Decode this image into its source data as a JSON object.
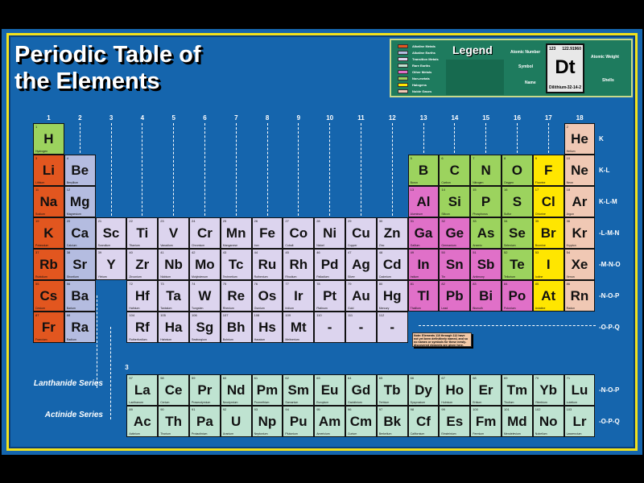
{
  "title": {
    "line1": "Periodic Table of",
    "line2": "the Elements"
  },
  "legend": {
    "title": "Legend",
    "categories": [
      {
        "key": "alkali",
        "label": "Alkaline Metals",
        "color": "#e2561f"
      },
      {
        "key": "alkaline",
        "label": "Alkaline Earths",
        "color": "#b4bce0"
      },
      {
        "key": "transition",
        "label": "Transition Metals",
        "color": "#dcd4ee"
      },
      {
        "key": "rare",
        "label": "Rare Earths",
        "color": "#bfe3d1"
      },
      {
        "key": "other",
        "label": "Other Metals",
        "color": "#e070c8"
      },
      {
        "key": "nonmetal",
        "label": "Non-metals",
        "color": "#9cd35e"
      },
      {
        "key": "halogen",
        "label": "Halogens",
        "color": "#ffe600"
      },
      {
        "key": "noble",
        "label": "Noble Gases",
        "color": "#f0c8b4"
      }
    ],
    "sample": {
      "number": "123",
      "weight": "122.91960",
      "symbol": "Dt",
      "name": "Dilithium",
      "shells": "-32-14-2"
    },
    "labels": {
      "number": "Atomic Number",
      "weight": "Atomic Weight",
      "symbol": "Symbol",
      "name": "Name",
      "shells": "Shells"
    }
  },
  "groups": [
    "1",
    "2",
    "3",
    "4",
    "5",
    "6",
    "7",
    "8",
    "9",
    "10",
    "11",
    "12",
    "13",
    "14",
    "15",
    "16",
    "17",
    "18"
  ],
  "lanthanide_group_label": "3",
  "shells": [
    "K",
    "K-L",
    "K-L-M",
    "-L-M-N",
    "-M-N-O",
    "-N-O-P",
    "-O-P-Q"
  ],
  "series_shells": [
    "-N-O-P",
    "-O-P-Q"
  ],
  "series_labels": {
    "lanthanide": "Lanthanide Series",
    "actinide": "Actinide Series"
  },
  "note": "Note: Elements 110 through 112 have not yet been definitively named, and so no names or symbols for these newly-discovered elements are given here.",
  "elements": [
    {
      "n": 1,
      "s": "H",
      "name": "Hydrogen",
      "c": "nonmetal",
      "g": 1,
      "p": 1
    },
    {
      "n": 2,
      "s": "He",
      "name": "Helium",
      "c": "noble",
      "g": 18,
      "p": 1
    },
    {
      "n": 3,
      "s": "Li",
      "name": "Lithium",
      "c": "alkali",
      "g": 1,
      "p": 2
    },
    {
      "n": 4,
      "s": "Be",
      "name": "Beryllium",
      "c": "alkaline",
      "g": 2,
      "p": 2
    },
    {
      "n": 5,
      "s": "B",
      "name": "Boron",
      "c": "nonmetal",
      "g": 13,
      "p": 2
    },
    {
      "n": 6,
      "s": "C",
      "name": "Carbon",
      "c": "nonmetal",
      "g": 14,
      "p": 2
    },
    {
      "n": 7,
      "s": "N",
      "name": "Nitrogen",
      "c": "nonmetal",
      "g": 15,
      "p": 2
    },
    {
      "n": 8,
      "s": "O",
      "name": "Oxygen",
      "c": "nonmetal",
      "g": 16,
      "p": 2
    },
    {
      "n": 9,
      "s": "F",
      "name": "Fluorine",
      "c": "halogen",
      "g": 17,
      "p": 2
    },
    {
      "n": 10,
      "s": "Ne",
      "name": "Neon",
      "c": "noble",
      "g": 18,
      "p": 2
    },
    {
      "n": 11,
      "s": "Na",
      "name": "Sodium",
      "c": "alkali",
      "g": 1,
      "p": 3
    },
    {
      "n": 12,
      "s": "Mg",
      "name": "Magnesium",
      "c": "alkaline",
      "g": 2,
      "p": 3
    },
    {
      "n": 13,
      "s": "Al",
      "name": "Aluminum",
      "c": "other",
      "g": 13,
      "p": 3
    },
    {
      "n": 14,
      "s": "Si",
      "name": "Silicon",
      "c": "nonmetal",
      "g": 14,
      "p": 3
    },
    {
      "n": 15,
      "s": "P",
      "name": "Phosphorus",
      "c": "nonmetal",
      "g": 15,
      "p": 3
    },
    {
      "n": 16,
      "s": "S",
      "name": "Sulfur",
      "c": "nonmetal",
      "g": 16,
      "p": 3
    },
    {
      "n": 17,
      "s": "Cl",
      "name": "Chlorine",
      "c": "halogen",
      "g": 17,
      "p": 3
    },
    {
      "n": 18,
      "s": "Ar",
      "name": "Argon",
      "c": "noble",
      "g": 18,
      "p": 3
    },
    {
      "n": 19,
      "s": "K",
      "name": "Potassium",
      "c": "alkali",
      "g": 1,
      "p": 4
    },
    {
      "n": 20,
      "s": "Ca",
      "name": "Calcium",
      "c": "alkaline",
      "g": 2,
      "p": 4
    },
    {
      "n": 21,
      "s": "Sc",
      "name": "Scandium",
      "c": "transition",
      "g": 3,
      "p": 4
    },
    {
      "n": 22,
      "s": "Ti",
      "name": "Titanium",
      "c": "transition",
      "g": 4,
      "p": 4
    },
    {
      "n": 23,
      "s": "V",
      "name": "Vanadium",
      "c": "transition",
      "g": 5,
      "p": 4
    },
    {
      "n": 24,
      "s": "Cr",
      "name": "Chromium",
      "c": "transition",
      "g": 6,
      "p": 4
    },
    {
      "n": 25,
      "s": "Mn",
      "name": "Manganese",
      "c": "transition",
      "g": 7,
      "p": 4
    },
    {
      "n": 26,
      "s": "Fe",
      "name": "Iron",
      "c": "transition",
      "g": 8,
      "p": 4
    },
    {
      "n": 27,
      "s": "Co",
      "name": "Cobalt",
      "c": "transition",
      "g": 9,
      "p": 4
    },
    {
      "n": 28,
      "s": "Ni",
      "name": "Nickel",
      "c": "transition",
      "g": 10,
      "p": 4
    },
    {
      "n": 29,
      "s": "Cu",
      "name": "Copper",
      "c": "transition",
      "g": 11,
      "p": 4
    },
    {
      "n": 30,
      "s": "Zn",
      "name": "Zinc",
      "c": "transition",
      "g": 12,
      "p": 4
    },
    {
      "n": 31,
      "s": "Ga",
      "name": "Gallium",
      "c": "other",
      "g": 13,
      "p": 4
    },
    {
      "n": 32,
      "s": "Ge",
      "name": "Germanium",
      "c": "other",
      "g": 14,
      "p": 4
    },
    {
      "n": 33,
      "s": "As",
      "name": "Arsenic",
      "c": "nonmetal",
      "g": 15,
      "p": 4
    },
    {
      "n": 34,
      "s": "Se",
      "name": "Selenium",
      "c": "nonmetal",
      "g": 16,
      "p": 4
    },
    {
      "n": 35,
      "s": "Br",
      "name": "Bromine",
      "c": "halogen",
      "g": 17,
      "p": 4
    },
    {
      "n": 36,
      "s": "Kr",
      "name": "Krypton",
      "c": "noble",
      "g": 18,
      "p": 4
    },
    {
      "n": 37,
      "s": "Rb",
      "name": "Rubidium",
      "c": "alkali",
      "g": 1,
      "p": 5
    },
    {
      "n": 38,
      "s": "Sr",
      "name": "Strontium",
      "c": "alkaline",
      "g": 2,
      "p": 5
    },
    {
      "n": 39,
      "s": "Y",
      "name": "Yttrium",
      "c": "transition",
      "g": 3,
      "p": 5
    },
    {
      "n": 40,
      "s": "Zr",
      "name": "Zirconium",
      "c": "transition",
      "g": 4,
      "p": 5
    },
    {
      "n": 41,
      "s": "Nb",
      "name": "Niobium",
      "c": "transition",
      "g": 5,
      "p": 5
    },
    {
      "n": 42,
      "s": "Mo",
      "name": "Molybdenum",
      "c": "transition",
      "g": 6,
      "p": 5
    },
    {
      "n": 43,
      "s": "Tc",
      "name": "Technetium",
      "c": "transition",
      "g": 7,
      "p": 5
    },
    {
      "n": 44,
      "s": "Ru",
      "name": "Ruthenium",
      "c": "transition",
      "g": 8,
      "p": 5
    },
    {
      "n": 45,
      "s": "Rh",
      "name": "Rhodium",
      "c": "transition",
      "g": 9,
      "p": 5
    },
    {
      "n": 46,
      "s": "Pd",
      "name": "Palladium",
      "c": "transition",
      "g": 10,
      "p": 5
    },
    {
      "n": 47,
      "s": "Ag",
      "name": "Silver",
      "c": "transition",
      "g": 11,
      "p": 5
    },
    {
      "n": 48,
      "s": "Cd",
      "name": "Cadmium",
      "c": "transition",
      "g": 12,
      "p": 5
    },
    {
      "n": 49,
      "s": "In",
      "name": "Indium",
      "c": "other",
      "g": 13,
      "p": 5
    },
    {
      "n": 50,
      "s": "Sn",
      "name": "Tin",
      "c": "other",
      "g": 14,
      "p": 5
    },
    {
      "n": 51,
      "s": "Sb",
      "name": "Antimony",
      "c": "other",
      "g": 15,
      "p": 5
    },
    {
      "n": 52,
      "s": "Te",
      "name": "Tellurium",
      "c": "nonmetal",
      "g": 16,
      "p": 5
    },
    {
      "n": 53,
      "s": "I",
      "name": "Iodine",
      "c": "halogen",
      "g": 17,
      "p": 5
    },
    {
      "n": 54,
      "s": "Xe",
      "name": "Xenon",
      "c": "noble",
      "g": 18,
      "p": 5
    },
    {
      "n": 55,
      "s": "Cs",
      "name": "Cesium",
      "c": "alkali",
      "g": 1,
      "p": 6
    },
    {
      "n": 56,
      "s": "Ba",
      "name": "Barium",
      "c": "alkaline",
      "g": 2,
      "p": 6
    },
    {
      "n": 72,
      "s": "Hf",
      "name": "Hafnium",
      "c": "transition",
      "g": 4,
      "p": 6
    },
    {
      "n": 73,
      "s": "Ta",
      "name": "Tantalum",
      "c": "transition",
      "g": 5,
      "p": 6
    },
    {
      "n": 74,
      "s": "W",
      "name": "Tungsten",
      "c": "transition",
      "g": 6,
      "p": 6
    },
    {
      "n": 75,
      "s": "Re",
      "name": "Rhenium",
      "c": "transition",
      "g": 7,
      "p": 6
    },
    {
      "n": 76,
      "s": "Os",
      "name": "Osmium",
      "c": "transition",
      "g": 8,
      "p": 6
    },
    {
      "n": 77,
      "s": "Ir",
      "name": "Iridium",
      "c": "transition",
      "g": 9,
      "p": 6
    },
    {
      "n": 78,
      "s": "Pt",
      "name": "Platinum",
      "c": "transition",
      "g": 10,
      "p": 6
    },
    {
      "n": 79,
      "s": "Au",
      "name": "Gold",
      "c": "transition",
      "g": 11,
      "p": 6
    },
    {
      "n": 80,
      "s": "Hg",
      "name": "Mercury",
      "c": "transition",
      "g": 12,
      "p": 6
    },
    {
      "n": 81,
      "s": "Tl",
      "name": "Thallium",
      "c": "other",
      "g": 13,
      "p": 6
    },
    {
      "n": 82,
      "s": "Pb",
      "name": "Lead",
      "c": "other",
      "g": 14,
      "p": 6
    },
    {
      "n": 83,
      "s": "Bi",
      "name": "Bismuth",
      "c": "other",
      "g": 15,
      "p": 6
    },
    {
      "n": 84,
      "s": "Po",
      "name": "Polonium",
      "c": "other",
      "g": 16,
      "p": 6
    },
    {
      "n": 85,
      "s": "At",
      "name": "Astatine",
      "c": "halogen",
      "g": 17,
      "p": 6
    },
    {
      "n": 86,
      "s": "Rn",
      "name": "Radon",
      "c": "noble",
      "g": 18,
      "p": 6
    },
    {
      "n": 87,
      "s": "Fr",
      "name": "Francium",
      "c": "alkali",
      "g": 1,
      "p": 7
    },
    {
      "n": 88,
      "s": "Ra",
      "name": "Radium",
      "c": "alkaline",
      "g": 2,
      "p": 7
    },
    {
      "n": 104,
      "s": "Rf",
      "name": "Rutherfordium",
      "c": "transition",
      "g": 4,
      "p": 7
    },
    {
      "n": 105,
      "s": "Ha",
      "name": "Hahnium",
      "c": "transition",
      "g": 5,
      "p": 7
    },
    {
      "n": 106,
      "s": "Sg",
      "name": "Seaborgium",
      "c": "transition",
      "g": 6,
      "p": 7
    },
    {
      "n": 107,
      "s": "Bh",
      "name": "Bohrium",
      "c": "transition",
      "g": 7,
      "p": 7
    },
    {
      "n": 108,
      "s": "Hs",
      "name": "Hassium",
      "c": "transition",
      "g": 8,
      "p": 7
    },
    {
      "n": 109,
      "s": "Mt",
      "name": "Meitnerium",
      "c": "transition",
      "g": 9,
      "p": 7
    },
    {
      "n": 110,
      "s": "-",
      "name": "",
      "c": "transition",
      "g": 10,
      "p": 7
    },
    {
      "n": 111,
      "s": "-",
      "name": "",
      "c": "transition",
      "g": 11,
      "p": 7
    },
    {
      "n": 112,
      "s": "-",
      "name": "",
      "c": "transition",
      "g": 12,
      "p": 7
    },
    {
      "n": 57,
      "s": "La",
      "name": "Lanthanum",
      "c": "rare",
      "g": 4,
      "p": 8
    },
    {
      "n": 58,
      "s": "Ce",
      "name": "Cerium",
      "c": "rare",
      "g": 5,
      "p": 8
    },
    {
      "n": 59,
      "s": "Pr",
      "name": "Praseodymium",
      "c": "rare",
      "g": 6,
      "p": 8
    },
    {
      "n": 60,
      "s": "Nd",
      "name": "Neodymium",
      "c": "rare",
      "g": 7,
      "p": 8
    },
    {
      "n": 61,
      "s": "Pm",
      "name": "Promethium",
      "c": "rare",
      "g": 8,
      "p": 8
    },
    {
      "n": 62,
      "s": "Sm",
      "name": "Samarium",
      "c": "rare",
      "g": 9,
      "p": 8
    },
    {
      "n": 63,
      "s": "Eu",
      "name": "Europium",
      "c": "rare",
      "g": 10,
      "p": 8
    },
    {
      "n": 64,
      "s": "Gd",
      "name": "Gadolinium",
      "c": "rare",
      "g": 11,
      "p": 8
    },
    {
      "n": 65,
      "s": "Tb",
      "name": "Terbium",
      "c": "rare",
      "g": 12,
      "p": 8
    },
    {
      "n": 66,
      "s": "Dy",
      "name": "Dysprosium",
      "c": "rare",
      "g": 13,
      "p": 8
    },
    {
      "n": 67,
      "s": "Ho",
      "name": "Holmium",
      "c": "rare",
      "g": 14,
      "p": 8
    },
    {
      "n": 68,
      "s": "Er",
      "name": "Erbium",
      "c": "rare",
      "g": 15,
      "p": 8
    },
    {
      "n": 69,
      "s": "Tm",
      "name": "Thulium",
      "c": "rare",
      "g": 16,
      "p": 8
    },
    {
      "n": 70,
      "s": "Yb",
      "name": "Ytterbium",
      "c": "rare",
      "g": 17,
      "p": 8
    },
    {
      "n": 71,
      "s": "Lu",
      "name": "Lutetium",
      "c": "rare",
      "g": 18,
      "p": 8
    },
    {
      "n": 89,
      "s": "Ac",
      "name": "Actinium",
      "c": "rare",
      "g": 4,
      "p": 9
    },
    {
      "n": 90,
      "s": "Th",
      "name": "Thorium",
      "c": "rare",
      "g": 5,
      "p": 9
    },
    {
      "n": 91,
      "s": "Pa",
      "name": "Protactinium",
      "c": "rare",
      "g": 6,
      "p": 9
    },
    {
      "n": 92,
      "s": "U",
      "name": "Uranium",
      "c": "rare",
      "g": 7,
      "p": 9
    },
    {
      "n": 93,
      "s": "Np",
      "name": "Neptunium",
      "c": "rare",
      "g": 8,
      "p": 9
    },
    {
      "n": 94,
      "s": "Pu",
      "name": "Plutonium",
      "c": "rare",
      "g": 9,
      "p": 9
    },
    {
      "n": 95,
      "s": "Am",
      "name": "Americium",
      "c": "rare",
      "g": 10,
      "p": 9
    },
    {
      "n": 96,
      "s": "Cm",
      "name": "Curium",
      "c": "rare",
      "g": 11,
      "p": 9
    },
    {
      "n": 97,
      "s": "Bk",
      "name": "Berkelium",
      "c": "rare",
      "g": 12,
      "p": 9
    },
    {
      "n": 98,
      "s": "Cf",
      "name": "Californium",
      "c": "rare",
      "g": 13,
      "p": 9
    },
    {
      "n": 99,
      "s": "Es",
      "name": "Einsteinium",
      "c": "rare",
      "g": 14,
      "p": 9
    },
    {
      "n": 100,
      "s": "Fm",
      "name": "Fermium",
      "c": "rare",
      "g": 15,
      "p": 9
    },
    {
      "n": 101,
      "s": "Md",
      "name": "Mendelevium",
      "c": "rare",
      "g": 16,
      "p": 9
    },
    {
      "n": 102,
      "s": "No",
      "name": "Nobelium",
      "c": "rare",
      "g": 17,
      "p": 9
    },
    {
      "n": 103,
      "s": "Lr",
      "name": "Lawrencium",
      "c": "rare",
      "g": 18,
      "p": 9
    }
  ]
}
